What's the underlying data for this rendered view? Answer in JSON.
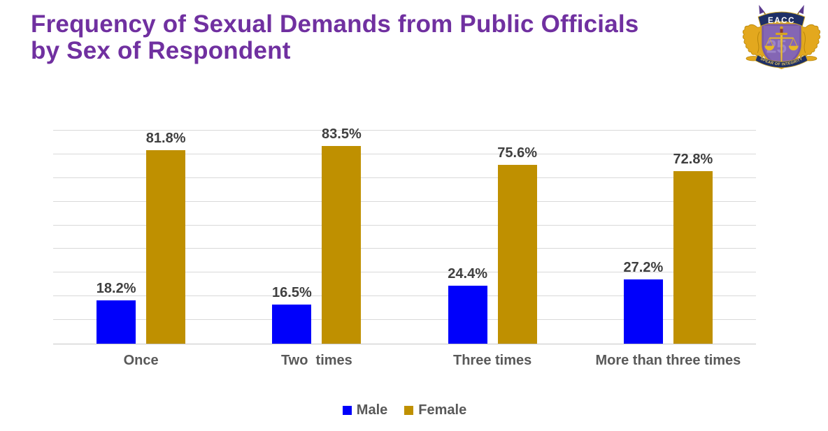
{
  "page": {
    "background": "#FFFFFF"
  },
  "header": {
    "title": "Frequency of Sexual Demands from Public Officials by Sex of Respondent",
    "title_color": "#7030A0"
  },
  "logo": {
    "acronym": "EACC",
    "motto": "SPEAR OF INTEGRITY",
    "watermark": "25",
    "colors": {
      "navy": "#1E2F66",
      "gold": "#E3A81E",
      "gold_dark": "#B8860B",
      "shield_purple": "#7757A8",
      "blade_purple": "#5B3A8E"
    }
  },
  "chart_data": {
    "type": "bar",
    "title": "",
    "xlabel": "",
    "ylabel": "",
    "categories": [
      "Once",
      "Two  times",
      "Three times",
      "More than three times"
    ],
    "series": [
      {
        "name": "Male",
        "color": "#0000FB",
        "values": [
          18.2,
          16.5,
          24.4,
          27.2
        ]
      },
      {
        "name": "Female",
        "color": "#BF9000",
        "values": [
          81.8,
          83.5,
          75.6,
          72.8
        ]
      }
    ],
    "value_suffix": "%",
    "ylim": [
      0,
      90
    ],
    "grid": true,
    "grid_step": 10,
    "gridline_color": "#D9D9D9",
    "axis_line_color": "#C6C6C6",
    "data_label_color": "#3F3F3F",
    "category_label_color": "#595959",
    "legend_position": "bottom",
    "legend_text_color": "#595959"
  }
}
